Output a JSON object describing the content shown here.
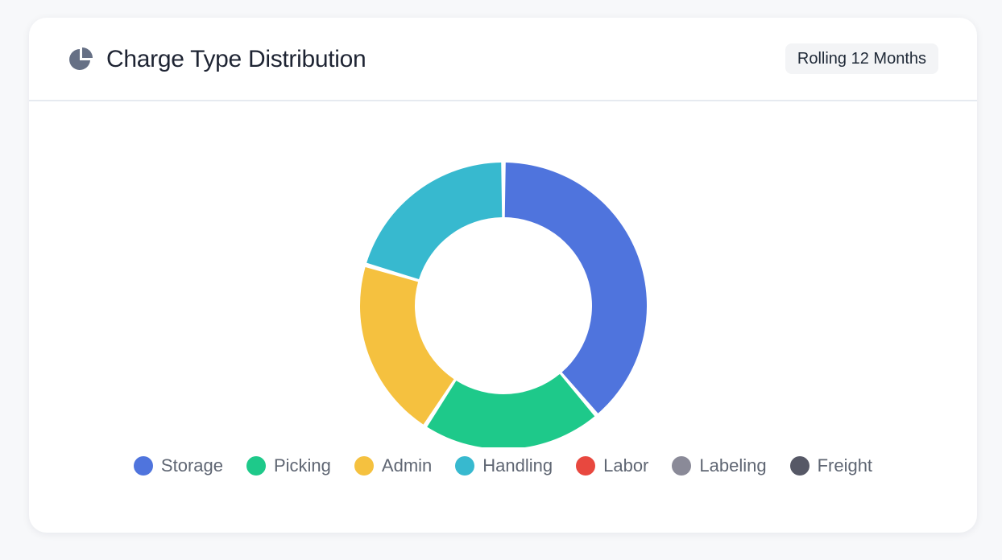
{
  "header": {
    "title": "Charge Type Distribution",
    "icon": "pie-chart-icon",
    "period": "Rolling 12 Months"
  },
  "chart_data": {
    "type": "pie",
    "style": "donut",
    "title": "Charge Type Distribution",
    "categories": [
      "Storage",
      "Picking",
      "Admin",
      "Handling",
      "Labor",
      "Labeling",
      "Freight"
    ],
    "values": [
      38,
      20,
      20,
      20,
      0,
      0,
      0
    ],
    "colors": [
      "#4f74dd",
      "#1ec98a",
      "#f5c13f",
      "#37b9cf",
      "#e8483f",
      "#8a8a98",
      "#565866"
    ],
    "legend": "bottom"
  }
}
